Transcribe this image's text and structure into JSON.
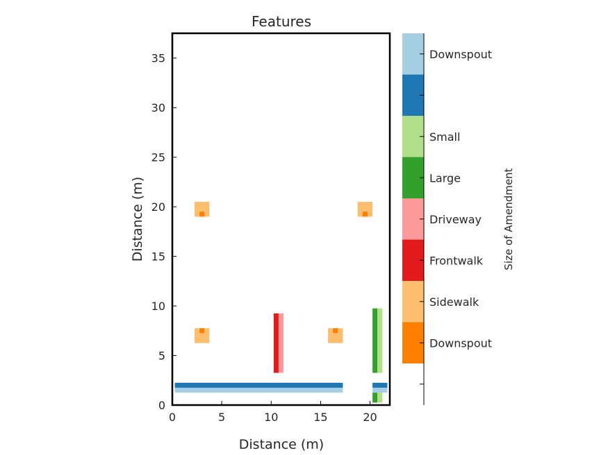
{
  "chart_data": {
    "type": "heatmap",
    "title": "Features",
    "xlabel": "Distance (m)",
    "ylabel": "Distance (m)",
    "xlim": [
      0,
      22
    ],
    "ylim": [
      0,
      37.5
    ],
    "xticks": [
      0,
      5,
      10,
      15,
      20
    ],
    "yticks": [
      0,
      5,
      10,
      15,
      20,
      25,
      30,
      35
    ],
    "grid": false,
    "colorbar": {
      "title": "Size of Amendment",
      "segments": [
        {
          "label": "Downspout",
          "color": "#ff7f00"
        },
        {
          "label": "Sidewalk",
          "color": "#fdbf6f"
        },
        {
          "label": "Frontwalk",
          "color": "#e31a1c"
        },
        {
          "label": "Driveway",
          "color": "#fb9a99"
        },
        {
          "label": "Large",
          "color": "#33a02c"
        },
        {
          "label": "Small",
          "color": "#b2df8a"
        },
        {
          "label": "",
          "color": "#1f78b4"
        },
        {
          "label": "Downspout",
          "color": "#a6cee3"
        }
      ]
    },
    "features": [
      {
        "color": "#fdbf6f",
        "x": [
          2.25,
          3.75
        ],
        "y": [
          19.0,
          20.5
        ]
      },
      {
        "color": "#ff7f00",
        "x": [
          2.75,
          3.25
        ],
        "y": [
          19.0,
          19.5
        ]
      },
      {
        "color": "#fdbf6f",
        "x": [
          18.75,
          20.25
        ],
        "y": [
          19.0,
          20.5
        ]
      },
      {
        "color": "#ff7f00",
        "x": [
          19.25,
          19.75
        ],
        "y": [
          19.0,
          19.5
        ]
      },
      {
        "color": "#fdbf6f",
        "x": [
          2.25,
          3.75
        ],
        "y": [
          6.25,
          7.75
        ]
      },
      {
        "color": "#ff7f00",
        "x": [
          2.75,
          3.25
        ],
        "y": [
          7.25,
          7.75
        ]
      },
      {
        "color": "#fdbf6f",
        "x": [
          15.75,
          17.25
        ],
        "y": [
          6.25,
          7.75
        ]
      },
      {
        "color": "#ff7f00",
        "x": [
          16.25,
          16.75
        ],
        "y": [
          7.25,
          7.75
        ]
      },
      {
        "color": "#e31a1c",
        "x": [
          10.25,
          10.75
        ],
        "y": [
          3.25,
          9.25
        ]
      },
      {
        "color": "#fb9a99",
        "x": [
          10.75,
          11.25
        ],
        "y": [
          3.25,
          9.25
        ]
      },
      {
        "color": "#33a02c",
        "x": [
          20.25,
          20.75
        ],
        "y": [
          3.25,
          9.75
        ]
      },
      {
        "color": "#b2df8a",
        "x": [
          20.75,
          21.25
        ],
        "y": [
          3.25,
          9.75
        ]
      },
      {
        "color": "#1f78b4",
        "x": [
          0.25,
          17.25
        ],
        "y": [
          1.75,
          2.25
        ]
      },
      {
        "color": "#a6cee3",
        "x": [
          0.25,
          17.25
        ],
        "y": [
          1.25,
          1.75
        ]
      },
      {
        "color": "#1f78b4",
        "x": [
          20.25,
          21.75
        ],
        "y": [
          1.75,
          2.25
        ]
      },
      {
        "color": "#a6cee3",
        "x": [
          20.25,
          21.75
        ],
        "y": [
          1.25,
          1.75
        ]
      },
      {
        "color": "#33a02c",
        "x": [
          20.25,
          20.75
        ],
        "y": [
          0.25,
          1.25
        ]
      },
      {
        "color": "#b2df8a",
        "x": [
          20.75,
          21.25
        ],
        "y": [
          0.25,
          1.25
        ]
      }
    ]
  }
}
